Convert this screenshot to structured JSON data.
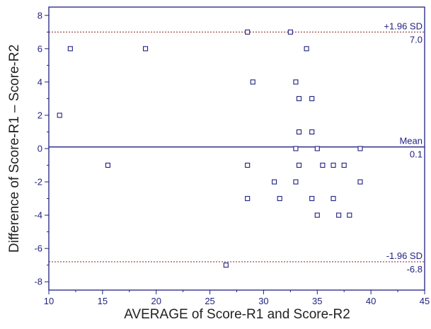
{
  "chart_data": {
    "type": "scatter",
    "subtype": "bland-altman",
    "title": "",
    "xlabel": "AVERAGE of Score-R1 and Score-R2",
    "ylabel": "Difference of Score-R1 – Score-R2",
    "xlim": [
      10,
      45
    ],
    "ylim": [
      -8.5,
      8.5
    ],
    "xticks": [
      "10",
      "15",
      "20",
      "25",
      "30",
      "35",
      "40",
      "45"
    ],
    "yticks": [
      "-8",
      "-6",
      "-4",
      "-2",
      "0",
      "2",
      "4",
      "6",
      "8"
    ],
    "grid": false,
    "points": [
      {
        "x": 11,
        "y": 2
      },
      {
        "x": 12,
        "y": 6
      },
      {
        "x": 15.5,
        "y": -1
      },
      {
        "x": 19,
        "y": 6
      },
      {
        "x": 26.5,
        "y": -7
      },
      {
        "x": 28.5,
        "y": 7
      },
      {
        "x": 28.5,
        "y": -1
      },
      {
        "x": 28.5,
        "y": -3
      },
      {
        "x": 29,
        "y": 4
      },
      {
        "x": 31,
        "y": -2
      },
      {
        "x": 31.5,
        "y": -3
      },
      {
        "x": 32.5,
        "y": 7
      },
      {
        "x": 33,
        "y": 4
      },
      {
        "x": 33,
        "y": 0
      },
      {
        "x": 33,
        "y": -2
      },
      {
        "x": 33.3,
        "y": 3
      },
      {
        "x": 33.3,
        "y": 1
      },
      {
        "x": 33.3,
        "y": -1
      },
      {
        "x": 34,
        "y": 6
      },
      {
        "x": 34.5,
        "y": 3
      },
      {
        "x": 34.5,
        "y": 1
      },
      {
        "x": 34.5,
        "y": -3
      },
      {
        "x": 35,
        "y": 0
      },
      {
        "x": 35,
        "y": -4
      },
      {
        "x": 35.5,
        "y": -1
      },
      {
        "x": 36.5,
        "y": -1
      },
      {
        "x": 36.5,
        "y": -3
      },
      {
        "x": 37,
        "y": -4
      },
      {
        "x": 37.5,
        "y": -1
      },
      {
        "x": 38,
        "y": -4
      },
      {
        "x": 39,
        "y": 0
      },
      {
        "x": 39,
        "y": -2
      }
    ],
    "reference_lines": [
      {
        "name": "upper-loa",
        "label": "+1.96 SD",
        "value_label": "7.0",
        "value": 7.0,
        "style": "dashed",
        "color": "#8b1a1a"
      },
      {
        "name": "mean",
        "label": "Mean",
        "value_label": "0.1",
        "value": 0.1,
        "style": "solid",
        "color": "#1f1f80"
      },
      {
        "name": "lower-loa",
        "label": "-1.96 SD",
        "value_label": "-6.8",
        "value": -6.8,
        "style": "dashed",
        "color": "#8b1a1a"
      }
    ],
    "colors": {
      "axis": "#1f1f80",
      "marker": "#1f1f80",
      "tick_text": "#1f1f80",
      "title_text": "#222222"
    }
  }
}
